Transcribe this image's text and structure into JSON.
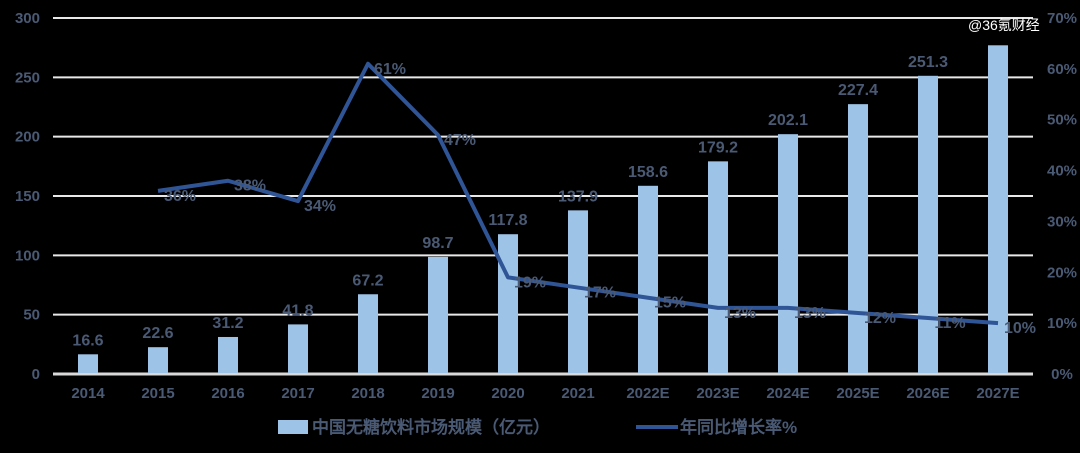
{
  "chart_data": {
    "type": "bar+line",
    "categories": [
      "2014",
      "2015",
      "2016",
      "2017",
      "2018",
      "2019",
      "2020",
      "2021",
      "2022E",
      "2023E",
      "2024E",
      "2025E",
      "2026E",
      "2027E"
    ],
    "series": [
      {
        "name": "中国无糖饮料市场规模（亿元）",
        "type": "bar",
        "axis": "left",
        "color": "#9dc3e6",
        "values": [
          16.6,
          22.6,
          31.2,
          41.8,
          67.2,
          98.7,
          117.8,
          137.9,
          158.6,
          179.2,
          202.1,
          227.4,
          251.3,
          277
        ],
        "labels": [
          "16.6",
          "22.6",
          "31.2",
          "41.8",
          "67.2",
          "98.7",
          "117.8",
          "137.9",
          "158.6",
          "179.2",
          "202.1",
          "227.4",
          "251.3",
          ""
        ]
      },
      {
        "name": "年同比增长率%",
        "type": "line",
        "axis": "right",
        "color": "#2f5597",
        "values": [
          null,
          36,
          38,
          34,
          61,
          47,
          19,
          17,
          15,
          13,
          13,
          12,
          11,
          10
        ],
        "labels": [
          "",
          "36%",
          "38%",
          "34%",
          "61%",
          "47%",
          "19%",
          "17%",
          "15%",
          "13%",
          "13%",
          "12%",
          "11%",
          "10%"
        ]
      }
    ],
    "yleft": {
      "lim": [
        0,
        300
      ],
      "ticks": [
        "0",
        "50",
        "100",
        "150",
        "200",
        "250",
        "300"
      ]
    },
    "yright": {
      "lim": [
        0,
        70
      ],
      "ticks": [
        "0%",
        "10%",
        "20%",
        "30%",
        "40%",
        "50%",
        "60%",
        "70%"
      ]
    },
    "grid": true,
    "legend": "bottom",
    "background": "#000000"
  },
  "watermark": "@36氪财经"
}
